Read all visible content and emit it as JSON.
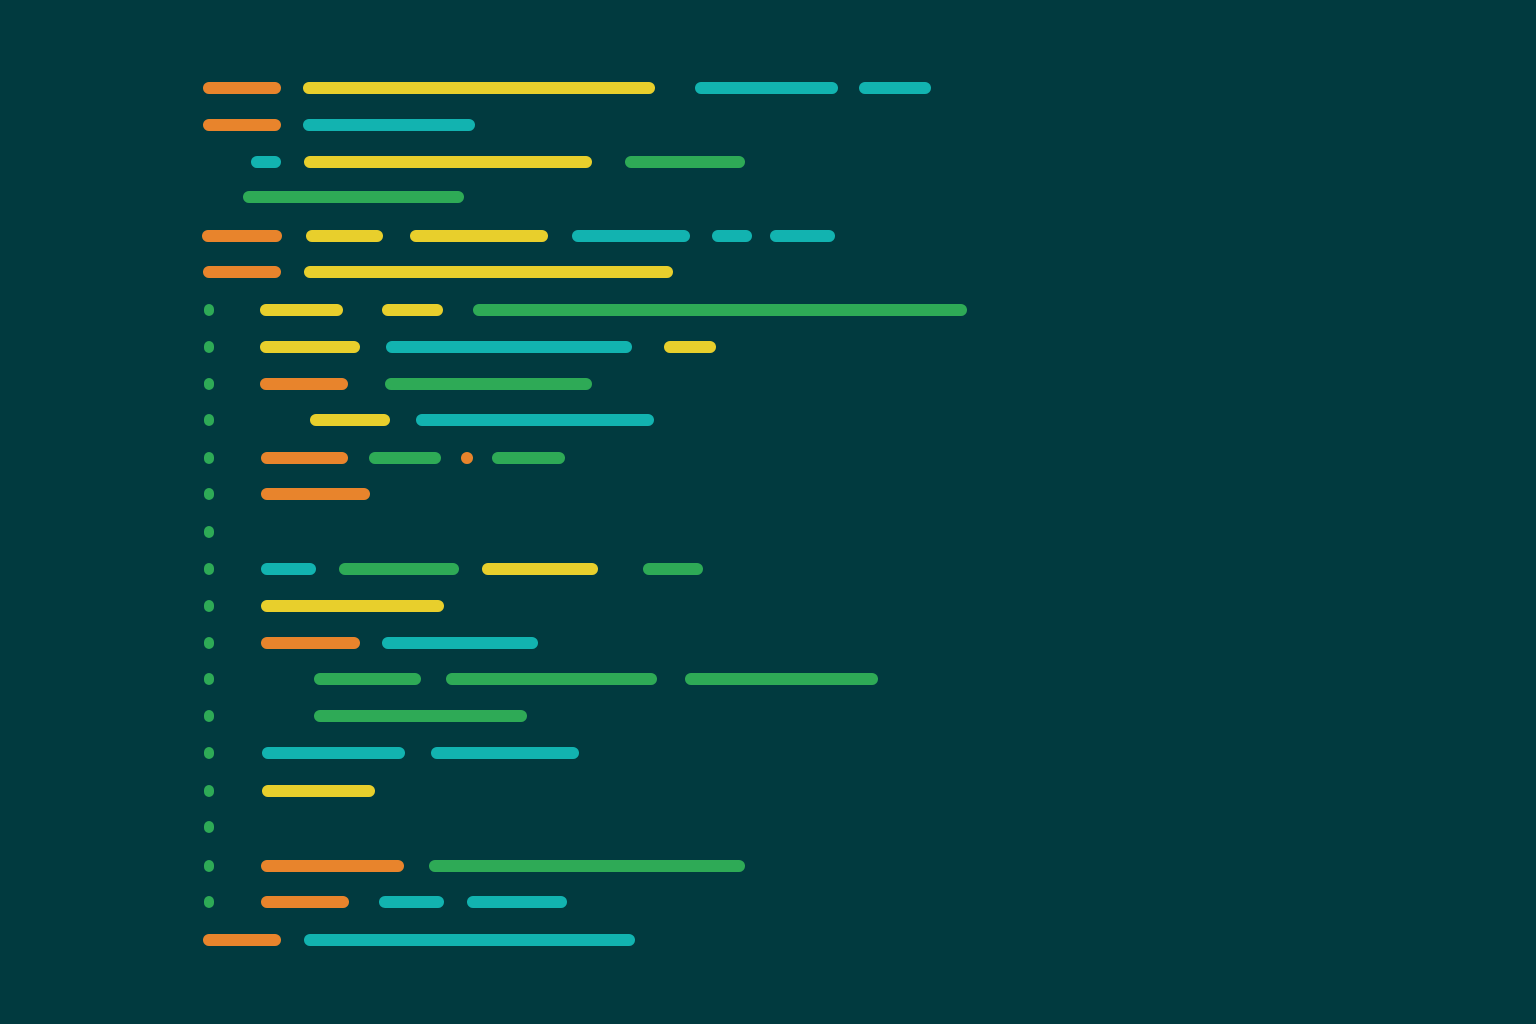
{
  "palette": {
    "background": "#013a3f",
    "keyword": "#e8842c",
    "string": "#e8cf2c",
    "identifier": "#12b3b0",
    "comment": "#2eaa56",
    "gutter": "#2eaa56"
  },
  "lines": [
    {
      "tokens": [
        {
          "kind": "keyword"
        },
        {
          "kind": "string"
        },
        {
          "kind": "identifier"
        },
        {
          "kind": "identifier"
        }
      ]
    },
    {
      "tokens": [
        {
          "kind": "keyword"
        },
        {
          "kind": "identifier"
        }
      ]
    },
    {
      "tokens": [
        {
          "kind": "identifier"
        },
        {
          "kind": "string"
        },
        {
          "kind": "comment"
        }
      ]
    },
    {
      "tokens": [
        {
          "kind": "comment"
        }
      ]
    },
    {
      "tokens": [
        {
          "kind": "keyword"
        },
        {
          "kind": "string"
        },
        {
          "kind": "string"
        },
        {
          "kind": "identifier"
        },
        {
          "kind": "identifier"
        },
        {
          "kind": "identifier"
        }
      ]
    },
    {
      "tokens": [
        {
          "kind": "keyword"
        },
        {
          "kind": "string"
        }
      ]
    },
    {
      "gutter": true,
      "tokens": [
        {
          "kind": "string"
        },
        {
          "kind": "string"
        },
        {
          "kind": "comment"
        }
      ]
    },
    {
      "gutter": true,
      "tokens": [
        {
          "kind": "string"
        },
        {
          "kind": "identifier"
        },
        {
          "kind": "string"
        }
      ]
    },
    {
      "gutter": true,
      "tokens": [
        {
          "kind": "keyword"
        },
        {
          "kind": "comment"
        }
      ]
    },
    {
      "gutter": true,
      "tokens": [
        {
          "kind": "string"
        },
        {
          "kind": "identifier"
        }
      ]
    },
    {
      "gutter": true,
      "tokens": [
        {
          "kind": "keyword"
        },
        {
          "kind": "comment"
        },
        {
          "kind": "keyword"
        },
        {
          "kind": "comment"
        }
      ]
    },
    {
      "gutter": true,
      "tokens": [
        {
          "kind": "keyword"
        }
      ]
    },
    {
      "gutter": true,
      "tokens": []
    },
    {
      "gutter": true,
      "tokens": [
        {
          "kind": "identifier"
        },
        {
          "kind": "comment"
        },
        {
          "kind": "string"
        },
        {
          "kind": "comment"
        }
      ]
    },
    {
      "gutter": true,
      "tokens": [
        {
          "kind": "string"
        }
      ]
    },
    {
      "gutter": true,
      "tokens": [
        {
          "kind": "keyword"
        },
        {
          "kind": "identifier"
        }
      ]
    },
    {
      "gutter": true,
      "tokens": [
        {
          "kind": "comment"
        },
        {
          "kind": "comment"
        },
        {
          "kind": "comment"
        }
      ]
    },
    {
      "gutter": true,
      "tokens": [
        {
          "kind": "comment"
        }
      ]
    },
    {
      "gutter": true,
      "tokens": [
        {
          "kind": "identifier"
        },
        {
          "kind": "identifier"
        }
      ]
    },
    {
      "gutter": true,
      "tokens": [
        {
          "kind": "string"
        }
      ]
    },
    {
      "gutter": true,
      "tokens": []
    },
    {
      "gutter": true,
      "tokens": [
        {
          "kind": "keyword"
        },
        {
          "kind": "comment"
        }
      ]
    },
    {
      "gutter": true,
      "tokens": [
        {
          "kind": "keyword"
        },
        {
          "kind": "identifier"
        },
        {
          "kind": "identifier"
        }
      ]
    },
    {
      "tokens": [
        {
          "kind": "keyword"
        },
        {
          "kind": "identifier"
        }
      ]
    }
  ]
}
